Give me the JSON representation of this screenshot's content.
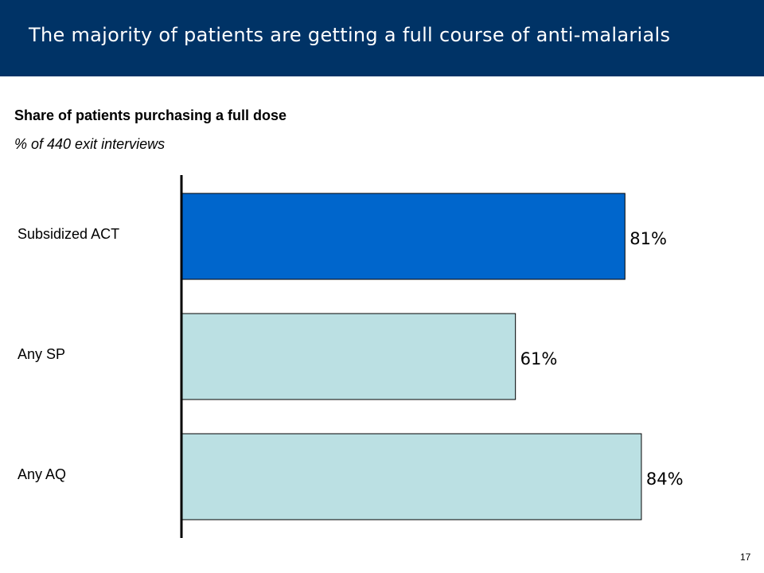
{
  "slide": {
    "title": "The majority of patients are getting a full course of anti-malarials",
    "page_number": "17"
  },
  "colors": {
    "header_background": "#003366",
    "highlight_bar": "#0066CC",
    "other_bar": "#BBE0E3"
  },
  "chart_data": {
    "type": "bar",
    "orientation": "horizontal",
    "title": "Share of patients purchasing a full dose",
    "subtitle": "% of 440 exit interviews",
    "categories": [
      "Subsidized ACT",
      "Any SP",
      "Any AQ"
    ],
    "values": [
      81,
      61,
      84
    ],
    "value_labels": [
      "81%",
      "61%",
      "84%"
    ],
    "unit": "%",
    "bar_colors": [
      "#0066CC",
      "#BBE0E3",
      "#BBE0E3"
    ],
    "xlim": [
      0,
      100
    ],
    "grid": false,
    "legend": "none"
  }
}
